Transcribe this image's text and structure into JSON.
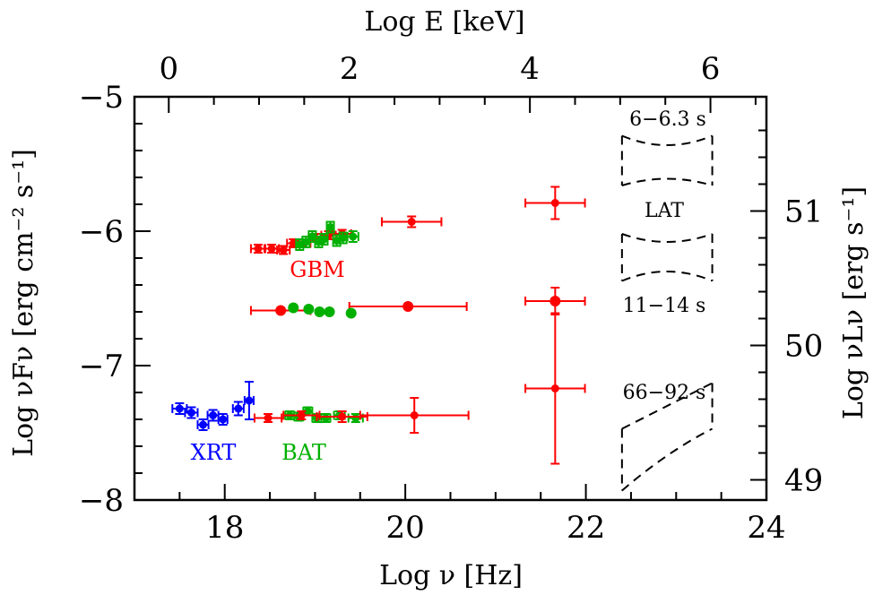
{
  "chart_data": {
    "type": "scatter",
    "xlabel": "Log ν  [Hz]",
    "ylabel": "Log νFν  [erg cm⁻² s⁻¹]",
    "top_xlabel": "Log E [keV]",
    "right_ylabel": "Log νLν  [erg s⁻¹]",
    "xlim": [
      17,
      24
    ],
    "ylim": [
      -8,
      -5
    ],
    "top_xlim": [
      -0.38,
      6.62
    ],
    "right_ylim": [
      48.85,
      51.85
    ],
    "x_ticks": [
      "18",
      "20",
      "22",
      "24"
    ],
    "y_ticks": [
      "−8",
      "−7",
      "−6",
      "−5"
    ],
    "top_ticks": [
      "0",
      "2",
      "4",
      "6"
    ],
    "right_ticks": [
      "49",
      "50",
      "51"
    ],
    "group_labels": [
      {
        "text": "XRT",
        "color": "#0000ff"
      },
      {
        "text": "BAT",
        "color": "#00b000"
      },
      {
        "text": "GBM",
        "color": "#ff0000"
      },
      {
        "text": "LAT",
        "color": "#000000"
      }
    ],
    "epoch_labels": [
      "6−6.3 s",
      "11−14 s",
      "66−92 s"
    ],
    "colors": {
      "xrt": "#0000ff",
      "bat": "#00b000",
      "gbm": "#ff0000",
      "lat": "#000000"
    },
    "series": [
      {
        "name": "XRT",
        "color": "#0000ff",
        "points": [
          {
            "x": 17.5,
            "y": -7.32,
            "xerr": 0.08,
            "yerr": 0.04
          },
          {
            "x": 17.63,
            "y": -7.35,
            "xerr": 0.07,
            "yerr": 0.04
          },
          {
            "x": 17.76,
            "y": -7.44,
            "xerr": 0.06,
            "yerr": 0.04
          },
          {
            "x": 17.87,
            "y": -7.37,
            "xerr": 0.06,
            "yerr": 0.04
          },
          {
            "x": 17.98,
            "y": -7.4,
            "xerr": 0.05,
            "yerr": 0.04
          },
          {
            "x": 18.15,
            "y": -7.32,
            "xerr": 0.06,
            "yerr": 0.05
          },
          {
            "x": 18.27,
            "y": -7.26,
            "xerr": 0.05,
            "yerr": 0.14
          }
        ]
      },
      {
        "name": "BAT (66-92 s)",
        "color": "#00b000",
        "points": [
          {
            "x": 18.72,
            "y": -7.37,
            "xerr": 0.05,
            "yerr": 0.03
          },
          {
            "x": 18.82,
            "y": -7.38,
            "xerr": 0.05,
            "yerr": 0.03
          },
          {
            "x": 18.92,
            "y": -7.34,
            "xerr": 0.05,
            "yerr": 0.03
          },
          {
            "x": 19.02,
            "y": -7.39,
            "xerr": 0.05,
            "yerr": 0.03
          },
          {
            "x": 19.12,
            "y": -7.39,
            "xerr": 0.05,
            "yerr": 0.03
          },
          {
            "x": 19.27,
            "y": -7.37,
            "xerr": 0.06,
            "yerr": 0.03
          },
          {
            "x": 19.45,
            "y": -7.39,
            "xerr": 0.08,
            "yerr": 0.03
          }
        ]
      },
      {
        "name": "GBM (66-92 s)",
        "color": "#ff0000",
        "points": [
          {
            "x": 18.48,
            "y": -7.39,
            "xerr": 0.15,
            "yerr": 0.03
          },
          {
            "x": 18.85,
            "y": -7.37,
            "xerr": 0.2,
            "yerr": 0.03
          },
          {
            "x": 19.3,
            "y": -7.38,
            "xerr": 0.28,
            "yerr": 0.04
          },
          {
            "x": 20.1,
            "y": -7.37,
            "xerr": 0.6,
            "yerr": 0.13
          },
          {
            "x": 21.66,
            "y": -7.17,
            "xerr": 0.33,
            "yerr": 0.56
          }
        ]
      },
      {
        "name": "GBM (11-14 s)",
        "color": "#ff0000",
        "points": [
          {
            "x": 18.62,
            "y": -6.59,
            "xerr": 0.33,
            "yerr": 0.0
          },
          {
            "x": 20.03,
            "y": -6.56,
            "xerr": 0.65,
            "yerr": 0.0
          },
          {
            "x": 21.66,
            "y": -6.52,
            "xerr": 0.33,
            "yerr": 0.1
          }
        ]
      },
      {
        "name": "BAT (11-14 s)",
        "color": "#00b000",
        "points": [
          {
            "x": 18.76,
            "y": -6.57,
            "xerr": 0.0,
            "yerr": 0.0
          },
          {
            "x": 18.93,
            "y": -6.58,
            "xerr": 0.0,
            "yerr": 0.0
          },
          {
            "x": 19.05,
            "y": -6.6,
            "xerr": 0.0,
            "yerr": 0.0
          },
          {
            "x": 19.16,
            "y": -6.6,
            "xerr": 0.0,
            "yerr": 0.0
          },
          {
            "x": 19.4,
            "y": -6.61,
            "xerr": 0.0,
            "yerr": 0.0
          }
        ]
      },
      {
        "name": "GBM (6-6.3 s)",
        "color": "#ff0000",
        "points": [
          {
            "x": 18.37,
            "y": -6.13,
            "xerr": 0.08,
            "yerr": 0.03
          },
          {
            "x": 18.52,
            "y": -6.13,
            "xerr": 0.08,
            "yerr": 0.03
          },
          {
            "x": 18.65,
            "y": -6.14,
            "xerr": 0.07,
            "yerr": 0.03
          },
          {
            "x": 18.76,
            "y": -6.09,
            "xerr": 0.07,
            "yerr": 0.03
          },
          {
            "x": 18.88,
            "y": -6.09,
            "xerr": 0.07,
            "yerr": 0.03
          },
          {
            "x": 19.0,
            "y": -6.05,
            "xerr": 0.07,
            "yerr": 0.03
          },
          {
            "x": 19.15,
            "y": -6.03,
            "xerr": 0.08,
            "yerr": 0.03
          },
          {
            "x": 19.3,
            "y": -6.02,
            "xerr": 0.1,
            "yerr": 0.03
          },
          {
            "x": 20.07,
            "y": -5.93,
            "xerr": 0.33,
            "yerr": 0.04
          },
          {
            "x": 21.66,
            "y": -5.79,
            "xerr": 0.33,
            "yerr": 0.12
          }
        ]
      },
      {
        "name": "BAT (6-6.3 s)",
        "color": "#00b000",
        "points": [
          {
            "x": 18.83,
            "y": -6.1,
            "xerr": 0.04,
            "yerr": 0.04
          },
          {
            "x": 18.9,
            "y": -6.08,
            "xerr": 0.04,
            "yerr": 0.04
          },
          {
            "x": 18.97,
            "y": -6.04,
            "xerr": 0.04,
            "yerr": 0.04
          },
          {
            "x": 19.04,
            "y": -6.08,
            "xerr": 0.04,
            "yerr": 0.04
          },
          {
            "x": 19.1,
            "y": -6.06,
            "xerr": 0.04,
            "yerr": 0.04
          },
          {
            "x": 19.17,
            "y": -5.97,
            "xerr": 0.04,
            "yerr": 0.04
          },
          {
            "x": 19.24,
            "y": -6.07,
            "xerr": 0.04,
            "yerr": 0.04
          },
          {
            "x": 19.31,
            "y": -6.05,
            "xerr": 0.04,
            "yerr": 0.04
          },
          {
            "x": 19.42,
            "y": -6.04,
            "xerr": 0.06,
            "yerr": 0.04
          }
        ]
      }
    ],
    "lat_bowties": [
      {
        "x0": 22.4,
        "x1": 23.4,
        "upper": [
          -5.29,
          -5.36,
          -5.29
        ],
        "lower": [
          -5.66,
          -5.61,
          -5.66
        ]
      },
      {
        "x0": 22.4,
        "x1": 23.4,
        "upper": [
          -6.02,
          -6.08,
          -6.02
        ],
        "lower": [
          -6.37,
          -6.3,
          -6.37
        ]
      },
      {
        "x0": 22.4,
        "x1": 23.4,
        "upper": [
          -7.47,
          -7.3,
          -7.13
        ],
        "lower": [
          -7.93,
          -7.67,
          -7.47
        ]
      }
    ]
  }
}
